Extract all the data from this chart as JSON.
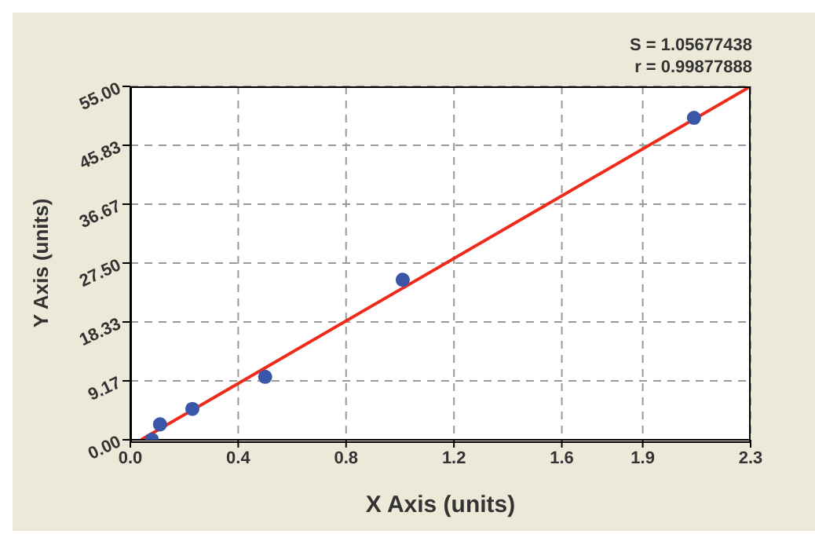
{
  "chart_data": {
    "type": "scatter",
    "xlabel": "X Axis (units)",
    "ylabel": "Y Axis (units)",
    "annotations": [
      "S = 1.05677438",
      "r = 0.99877888"
    ],
    "series": [
      {
        "color": "#3a56a8",
        "marker": "circle",
        "x": [
          0.08,
          0.11,
          0.23,
          0.5,
          1.01,
          2.09
        ],
        "values": [
          0,
          2.4,
          4.8,
          9.8,
          24.9,
          50.1
        ]
      },
      {
        "type": "line",
        "color": "#ee2a1b",
        "x": [
          0.04,
          2.3
        ],
        "values": [
          0,
          55
        ]
      }
    ],
    "xlim": [
      0,
      2.3
    ],
    "xticks": [
      {
        "value": 0,
        "label": "0.0"
      },
      0.4,
      0.8,
      1.2,
      1.6,
      1.9,
      2.3
    ],
    "ylim": [
      0,
      55
    ],
    "yticks": [
      {
        "value": 0,
        "label": "0.00"
      },
      {
        "value": 9.17,
        "label": "9.17"
      },
      {
        "value": 18.33,
        "label": "18.33"
      },
      {
        "value": 27.5,
        "label": "27.50"
      },
      {
        "value": 36.67,
        "label": "36.67"
      },
      {
        "value": 45.83,
        "label": "45.83"
      },
      {
        "value": 55,
        "label": "55.00"
      }
    ],
    "grid": true,
    "line_style": "solid",
    "legend": false
  }
}
